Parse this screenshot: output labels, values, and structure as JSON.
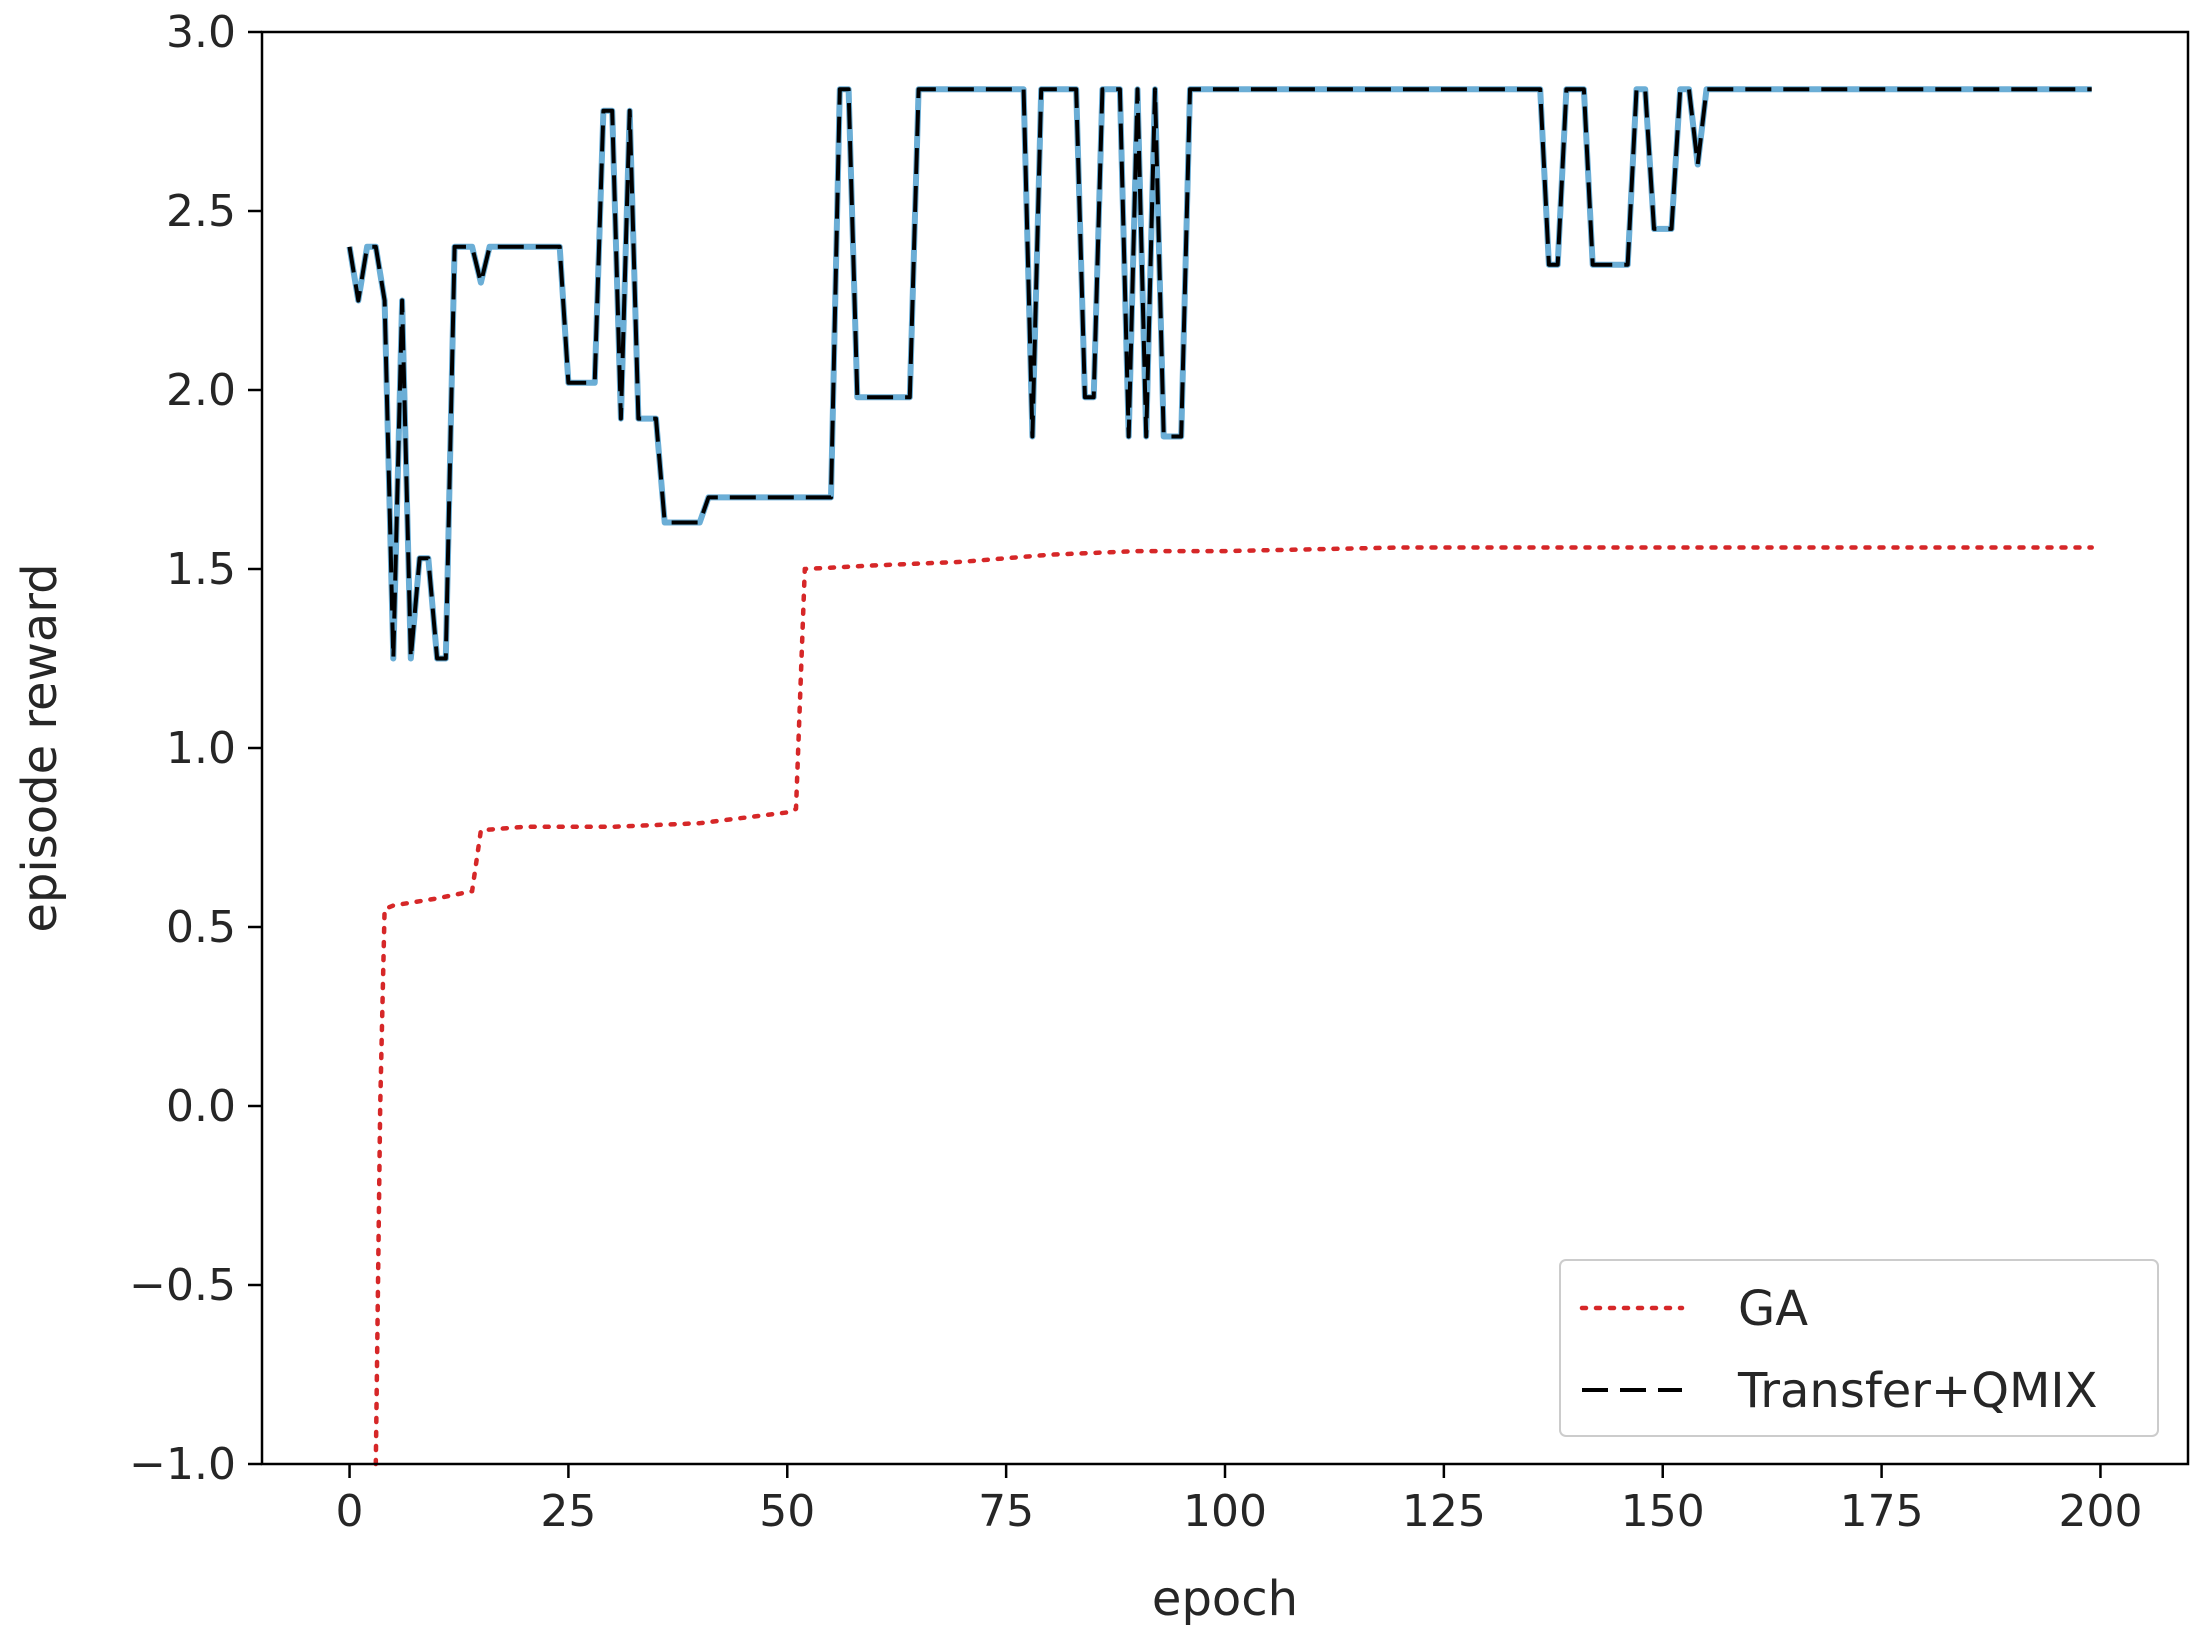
{
  "chart_data": {
    "type": "line",
    "title": "",
    "xlabel": "epoch",
    "ylabel": "episode reward",
    "xlim": [
      -10,
      210
    ],
    "ylim": [
      -1.0,
      3.0
    ],
    "xticks": [
      0,
      25,
      50,
      75,
      100,
      125,
      150,
      175,
      200
    ],
    "xtick_labels": [
      "0",
      "25",
      "50",
      "75",
      "100",
      "125",
      "150",
      "175",
      "200"
    ],
    "yticks": [
      -1.0,
      -0.5,
      0.0,
      0.5,
      1.0,
      1.5,
      2.0,
      2.5,
      3.0
    ],
    "ytick_labels": [
      "−1.0",
      "−0.5",
      "0.0",
      "0.5",
      "1.0",
      "1.5",
      "2.0",
      "2.5",
      "3.0"
    ],
    "grid": false,
    "legend_position": "lower-right",
    "series": [
      {
        "name": "GA",
        "style": "dotted",
        "color": "#d62728",
        "points": [
          [
            3,
            -1.0
          ],
          [
            3.5,
            0.0
          ],
          [
            4,
            0.55
          ],
          [
            5,
            0.56
          ],
          [
            10,
            0.58
          ],
          [
            14,
            0.6
          ],
          [
            15,
            0.77
          ],
          [
            20,
            0.78
          ],
          [
            30,
            0.78
          ],
          [
            40,
            0.79
          ],
          [
            50,
            0.82
          ],
          [
            51,
            0.83
          ],
          [
            52,
            1.5
          ],
          [
            60,
            1.51
          ],
          [
            70,
            1.52
          ],
          [
            80,
            1.54
          ],
          [
            90,
            1.55
          ],
          [
            100,
            1.55
          ],
          [
            120,
            1.56
          ],
          [
            150,
            1.56
          ],
          [
            175,
            1.56
          ],
          [
            199,
            1.56
          ]
        ]
      },
      {
        "name": "Transfer+QMIX",
        "style": "dashed",
        "color": "#000000",
        "underlay_color": "#6baed6",
        "points": [
          [
            0,
            2.4
          ],
          [
            1,
            2.25
          ],
          [
            2,
            2.4
          ],
          [
            3,
            2.4
          ],
          [
            4,
            2.25
          ],
          [
            5,
            1.25
          ],
          [
            6,
            2.25
          ],
          [
            7,
            1.25
          ],
          [
            8,
            1.53
          ],
          [
            9,
            1.53
          ],
          [
            10,
            1.25
          ],
          [
            11,
            1.25
          ],
          [
            12,
            2.4
          ],
          [
            14,
            2.4
          ],
          [
            15,
            2.3
          ],
          [
            16,
            2.4
          ],
          [
            24,
            2.4
          ],
          [
            25,
            2.02
          ],
          [
            28,
            2.02
          ],
          [
            29,
            2.78
          ],
          [
            30,
            2.78
          ],
          [
            31,
            1.92
          ],
          [
            32,
            2.78
          ],
          [
            33,
            1.92
          ],
          [
            35,
            1.92
          ],
          [
            36,
            1.63
          ],
          [
            40,
            1.63
          ],
          [
            41,
            1.7
          ],
          [
            55,
            1.7
          ],
          [
            56,
            2.84
          ],
          [
            57,
            2.84
          ],
          [
            58,
            1.98
          ],
          [
            64,
            1.98
          ],
          [
            65,
            2.84
          ],
          [
            77,
            2.84
          ],
          [
            78,
            1.87
          ],
          [
            79,
            2.84
          ],
          [
            83,
            2.84
          ],
          [
            84,
            1.98
          ],
          [
            85,
            1.98
          ],
          [
            86,
            2.84
          ],
          [
            88,
            2.84
          ],
          [
            89,
            1.87
          ],
          [
            90,
            2.84
          ],
          [
            91,
            1.87
          ],
          [
            92,
            2.84
          ],
          [
            93,
            1.87
          ],
          [
            95,
            1.87
          ],
          [
            96,
            2.84
          ],
          [
            136,
            2.84
          ],
          [
            137,
            2.35
          ],
          [
            138,
            2.35
          ],
          [
            139,
            2.84
          ],
          [
            141,
            2.84
          ],
          [
            142,
            2.35
          ],
          [
            146,
            2.35
          ],
          [
            147,
            2.84
          ],
          [
            148,
            2.84
          ],
          [
            149,
            2.45
          ],
          [
            151,
            2.45
          ],
          [
            152,
            2.84
          ],
          [
            153,
            2.84
          ],
          [
            154,
            2.63
          ],
          [
            155,
            2.84
          ],
          [
            199,
            2.84
          ]
        ]
      }
    ]
  }
}
